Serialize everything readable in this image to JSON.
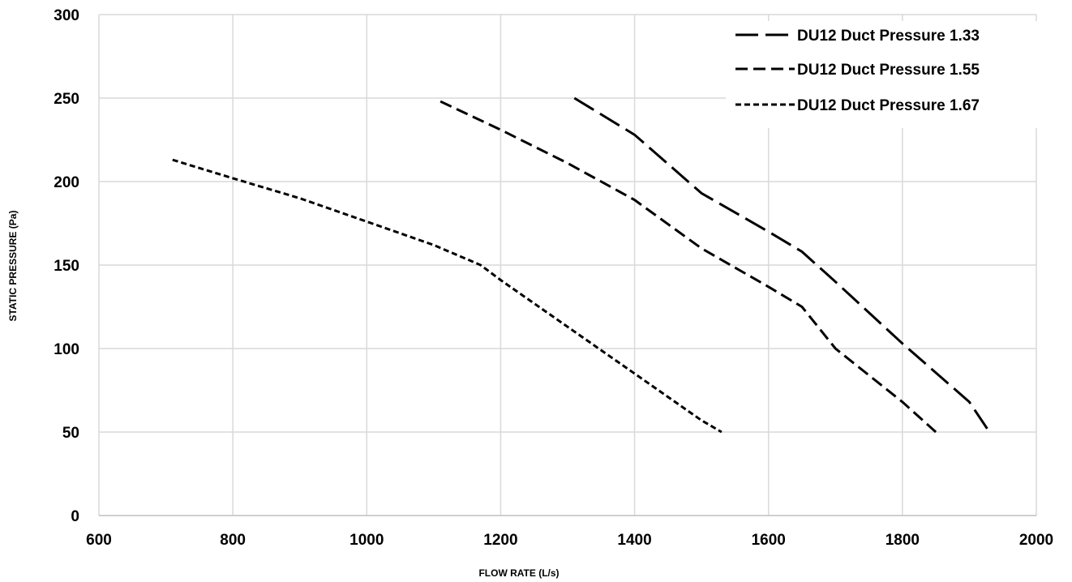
{
  "chart_data": {
    "type": "line",
    "title": "",
    "xlabel": "FLOW RATE (L/s)",
    "ylabel": "STATIC PRESSURE (Pa)",
    "xlim": [
      600,
      2000
    ],
    "ylim": [
      0,
      300
    ],
    "x_ticks": [
      "600",
      "800",
      "1000",
      "1200",
      "1400",
      "1600",
      "1800",
      "2000"
    ],
    "y_ticks": [
      "0",
      "50",
      "100",
      "150",
      "200",
      "250",
      "300"
    ],
    "grid": true,
    "legend_position": "top-right",
    "series": [
      {
        "name": "DU12 Duct Pressure 1.33",
        "dash": "long-dash",
        "points": [
          [
            1310,
            250
          ],
          [
            1400,
            228
          ],
          [
            1500,
            193
          ],
          [
            1600,
            170
          ],
          [
            1650,
            158
          ],
          [
            1700,
            140
          ],
          [
            1800,
            103
          ],
          [
            1900,
            68
          ],
          [
            1930,
            50
          ]
        ]
      },
      {
        "name": "DU12 Duct Pressure 1.55",
        "dash": "dash",
        "points": [
          [
            1110,
            248
          ],
          [
            1200,
            231
          ],
          [
            1300,
            211
          ],
          [
            1400,
            189
          ],
          [
            1500,
            160
          ],
          [
            1600,
            137
          ],
          [
            1650,
            125
          ],
          [
            1700,
            100
          ],
          [
            1800,
            68
          ],
          [
            1850,
            50
          ]
        ]
      },
      {
        "name": "DU12 Duct Pressure 1.67",
        "dash": "short-dash",
        "points": [
          [
            710,
            213
          ],
          [
            800,
            202
          ],
          [
            900,
            190
          ],
          [
            1000,
            176
          ],
          [
            1100,
            162
          ],
          [
            1170,
            150
          ],
          [
            1200,
            141
          ],
          [
            1300,
            113
          ],
          [
            1400,
            85
          ],
          [
            1500,
            57
          ],
          [
            1530,
            50
          ]
        ]
      }
    ]
  }
}
